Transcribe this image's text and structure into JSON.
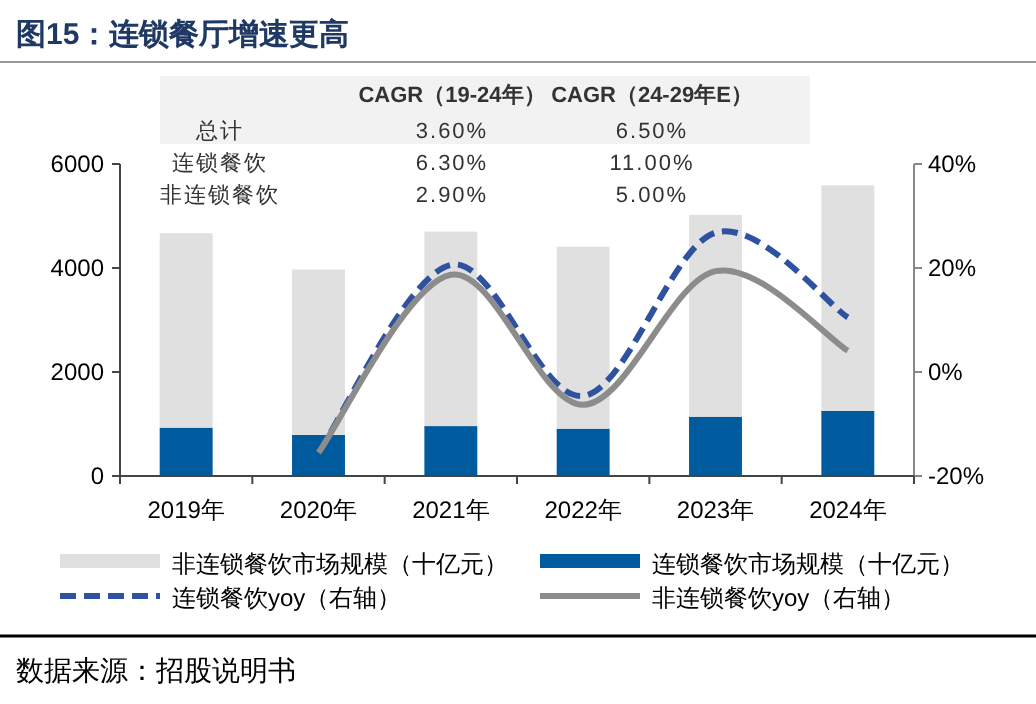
{
  "chart_data": {
    "type": "bar",
    "title": "图15：连锁餐厅增速更高",
    "categories": [
      "2019年",
      "2020年",
      "2021年",
      "2022年",
      "2023年",
      "2024年"
    ],
    "stacked": true,
    "series": [
      {
        "name": "连锁餐饮市场规模（十亿元）",
        "color": "#005a9e",
        "values": [
          930,
          790,
          960,
          910,
          1140,
          1250
        ]
      },
      {
        "name": "非连锁餐饮市场规模（十亿元）",
        "color": "#e0e0e0",
        "values": [
          3740,
          3180,
          3740,
          3500,
          3880,
          4340
        ]
      },
      {
        "name": "连锁餐饮yoy（右轴）",
        "type": "line",
        "axis": "y2",
        "line_style": "dashed",
        "color": "#2f52a0",
        "values": [
          null,
          -15.5,
          20.6,
          -4.6,
          26.8,
          10.5
        ]
      },
      {
        "name": "非连锁餐饮yoy（右轴）",
        "type": "line",
        "axis": "y2",
        "line_style": "solid",
        "color": "#8c8c8c",
        "values": [
          null,
          -15.5,
          18.7,
          -6.3,
          19.4,
          4.1
        ]
      }
    ],
    "ylim": [
      0,
      6000
    ],
    "yticks": [
      0,
      2000,
      4000,
      6000
    ],
    "y2lim": [
      -20,
      40
    ],
    "y2ticks": [
      {
        "value": -20,
        "label": "-20%"
      },
      {
        "value": 0,
        "label": "0%"
      },
      {
        "value": 20,
        "label": "20%"
      },
      {
        "value": 40,
        "label": "40%"
      }
    ],
    "legend": "bottom",
    "grid": false,
    "annotations": [
      "CAGR（19-24年）",
      "CAGR（24-29年E）",
      "总计",
      "3.60%",
      "6.50%",
      "连锁餐饮",
      "6.30%",
      "11.00%",
      "非连锁餐饮",
      "2.90%",
      "5.00%",
      "数据来源：招股说明书"
    ]
  }
}
